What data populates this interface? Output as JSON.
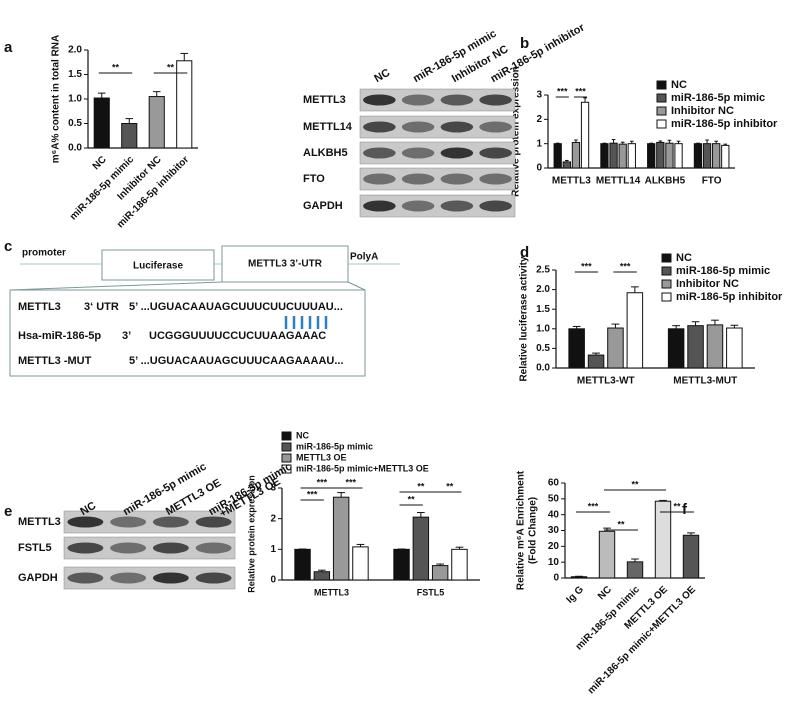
{
  "chart_data": [
    {
      "type": "bar",
      "panel_label": "a",
      "ylabel": "m⁶A% content in total RNA",
      "categories": [
        "NC",
        "miR-186-5p mimic",
        "Inhibitor NC",
        "miR-186-5p inhibitor"
      ],
      "values": [
        1.02,
        0.5,
        1.05,
        1.78
      ],
      "errors": [
        0.1,
        0.1,
        0.1,
        0.15
      ],
      "colors": [
        "#111111",
        "#555555",
        "#999999",
        "#ffffff"
      ],
      "ylim": [
        0,
        2
      ],
      "yticks": [
        {
          "value": 0,
          "label": "0.0"
        },
        {
          "value": 0.5,
          "label": "0.5"
        },
        {
          "value": 1,
          "label": "1.0"
        },
        {
          "value": 1.5,
          "label": "1.5"
        },
        {
          "value": 2,
          "label": "2.0"
        }
      ],
      "annotations": [
        "**",
        "**"
      ]
    },
    {
      "type": "grouped-bar",
      "panel_label": "b",
      "ylabel": "Relative protein expression",
      "categories": [
        "METTL3",
        "METTL14",
        "ALKBH5",
        "FTO"
      ],
      "series": [
        {
          "name": "NC",
          "color": "#111111",
          "values": [
            1,
            1,
            1,
            1
          ],
          "errors": [
            0.02,
            0.02,
            0.02,
            0.02
          ]
        },
        {
          "name": "miR-186-5p mimic",
          "color": "#555555",
          "values": [
            0.25,
            1.02,
            1.05,
            1.0
          ],
          "errors": [
            0.06,
            0.15,
            0.06,
            0.15
          ]
        },
        {
          "name": "Inhibitor NC",
          "color": "#999999",
          "values": [
            1.05,
            0.98,
            1.02,
            1.0
          ],
          "errors": [
            0.1,
            0.08,
            0.12,
            0.1
          ]
        },
        {
          "name": "miR-186-5p inhibitor",
          "color": "#ffffff",
          "values": [
            2.7,
            1.0,
            1.0,
            0.93
          ],
          "errors": [
            0.18,
            0.1,
            0.1,
            0.05
          ]
        }
      ],
      "ylim": [
        0,
        3
      ],
      "yticks": [
        0,
        1,
        2,
        3
      ],
      "legend": "right",
      "annotations": [
        "***",
        "***"
      ]
    },
    {
      "type": "grouped-bar",
      "panel_label": "d",
      "ylabel": "Relative luciferase activity",
      "categories": [
        "METTL3-WT",
        "METTL3-MUT"
      ],
      "series": [
        {
          "name": "NC",
          "color": "#111111",
          "values": [
            1.0,
            1.0
          ],
          "errors": [
            0.06,
            0.08
          ]
        },
        {
          "name": "miR-186-5p mimic",
          "color": "#555555",
          "values": [
            0.33,
            1.08
          ],
          "errors": [
            0.05,
            0.1
          ]
        },
        {
          "name": "Inhibitor NC",
          "color": "#999999",
          "values": [
            1.02,
            1.1
          ],
          "errors": [
            0.1,
            0.12
          ]
        },
        {
          "name": "miR-186-5p inhibitor",
          "color": "#ffffff",
          "values": [
            1.92,
            1.02
          ],
          "errors": [
            0.15,
            0.07
          ]
        }
      ],
      "ylim": [
        0,
        2.5
      ],
      "yticks": [
        {
          "value": 0,
          "label": "0.0"
        },
        {
          "value": 0.5,
          "label": "0.5"
        },
        {
          "value": 1,
          "label": "1.0"
        },
        {
          "value": 1.5,
          "label": "1.5"
        },
        {
          "value": 2,
          "label": "2.0"
        },
        {
          "value": 2.5,
          "label": "2.5"
        }
      ],
      "legend": "right",
      "annotations": [
        "***",
        "***"
      ]
    },
    {
      "type": "grouped-bar",
      "panel_label": "e",
      "ylabel": "Relative protein expression",
      "categories": [
        "METTL3",
        "FSTL5"
      ],
      "series": [
        {
          "name": "NC",
          "color": "#111111",
          "values": [
            1,
            1
          ],
          "errors": [
            0.01,
            0.01
          ]
        },
        {
          "name": "miR-186-5p mimic",
          "color": "#555555",
          "values": [
            0.27,
            2.05
          ],
          "errors": [
            0.05,
            0.15
          ]
        },
        {
          "name": "METTL3 OE",
          "color": "#999999",
          "values": [
            2.7,
            0.47
          ],
          "errors": [
            0.15,
            0.05
          ]
        },
        {
          "name": "miR-186-5p mimic+METTL3 OE",
          "color": "#ffffff",
          "values": [
            1.08,
            1.0
          ],
          "errors": [
            0.08,
            0.07
          ]
        }
      ],
      "ylim": [
        0,
        3
      ],
      "yticks": [
        0,
        1,
        2,
        3
      ],
      "legend": "top",
      "annotations": [
        "***",
        "***",
        "***",
        "**",
        "**",
        "**"
      ]
    },
    {
      "type": "bar",
      "panel_label": "f",
      "ylabel": [
        "Relative m⁶A Enrichment",
        "(Fold Change)"
      ],
      "categories": [
        "Ig G",
        "NC",
        "miR-186-5p mimic",
        "METTL3 OE",
        "miR-186-5p mimic+METTL3 OE"
      ],
      "values": [
        0.8,
        29.5,
        10.2,
        48.5,
        27
      ],
      "errors": [
        0.3,
        2,
        1.8,
        0.5,
        1.5
      ],
      "colors": [
        "#111111",
        "#bbbbbb",
        "#666666",
        "#dddddd",
        "#555555"
      ],
      "ylim": [
        0,
        60
      ],
      "yticks": [
        0,
        10,
        20,
        30,
        40,
        50,
        60
      ],
      "annotations": [
        "***",
        "**",
        "**",
        "**"
      ]
    }
  ],
  "blot_b": {
    "lanes": [
      "NC",
      "miR-186-5p mimic",
      "Inhibitor NC",
      "miR-186-5p inhibitor"
    ],
    "rows": [
      "METTL3",
      "METTL14",
      "ALKBH5",
      "FTO",
      "GAPDH"
    ]
  },
  "blot_e": {
    "panel_label": "e",
    "lanes": [
      [
        "NC"
      ],
      [
        "miR-186-5p mimic"
      ],
      [
        "METTL3 OE"
      ],
      [
        "miR-186-5p mimic",
        "+METTL3 OE"
      ]
    ],
    "rows": [
      "METTL3",
      "FSTL5",
      "GAPDH"
    ]
  },
  "diagram_c": {
    "panel_label": "c",
    "promoter": "promoter",
    "box1": "Luciferase",
    "box2": "METTL3 3’-UTR",
    "polyA": "PolyA",
    "rows": [
      [
        "METTL3",
        "3‘ UTR",
        "5’ ...UGUACAAUAGCUUUCUUCUUUAU..."
      ],
      [
        "Hsa-miR-186-5p",
        "3’",
        "UCGGGUUUUCCUCUUAAGAAAC"
      ],
      [
        "METTL3 -MUT",
        "5’ ...UGUACAAUAGCUUUCAAGAAAAU..."
      ]
    ]
  }
}
